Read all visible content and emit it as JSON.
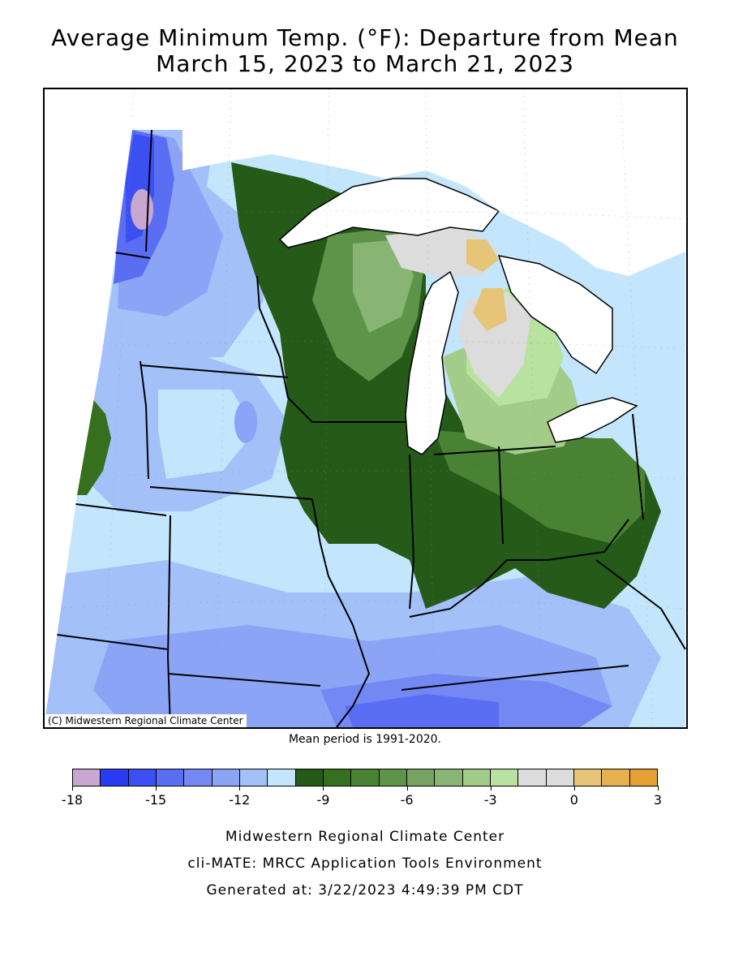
{
  "title": {
    "line1": "Average Minimum Temp. (°F): Departure from Mean",
    "line2": "March 15, 2023 to March 21, 2023"
  },
  "map": {
    "copyright": "(C) Midwestern Regional Climate Center",
    "region": "Midwest United States",
    "water_color": "#ffffff",
    "boundary_color": "#000000"
  },
  "mean_period": "Mean period is 1991-2020.",
  "legend": {
    "colors": [
      "#c8a8d0",
      "#2a3cf2",
      "#3c50f2",
      "#5a6ef4",
      "#7488f4",
      "#8ca4f6",
      "#a4c0f8",
      "#c4e6fc",
      "#265a18",
      "#36701e",
      "#4a8234",
      "#5e944a",
      "#74a460",
      "#88b474",
      "#a2cc88",
      "#b8e2a0",
      "#dcdcdc",
      "#dcdcdc",
      "#e6c478",
      "#e6b050",
      "#e6a034"
    ],
    "ticks": [
      {
        "label": "-18",
        "index": 0
      },
      {
        "label": "-15",
        "index": 3
      },
      {
        "label": "-12",
        "index": 6
      },
      {
        "label": "-9",
        "index": 9
      },
      {
        "label": "-6",
        "index": 12
      },
      {
        "label": "-3",
        "index": 15
      },
      {
        "label": "0",
        "index": 18
      },
      {
        "label": "3",
        "index": 21
      }
    ]
  },
  "footer": {
    "line1": "Midwestern Regional Climate Center",
    "line2": "cli-MATE: MRCC Application Tools Environment",
    "line3": "Generated at: 3/22/2023 4:49:39 PM CDT"
  }
}
